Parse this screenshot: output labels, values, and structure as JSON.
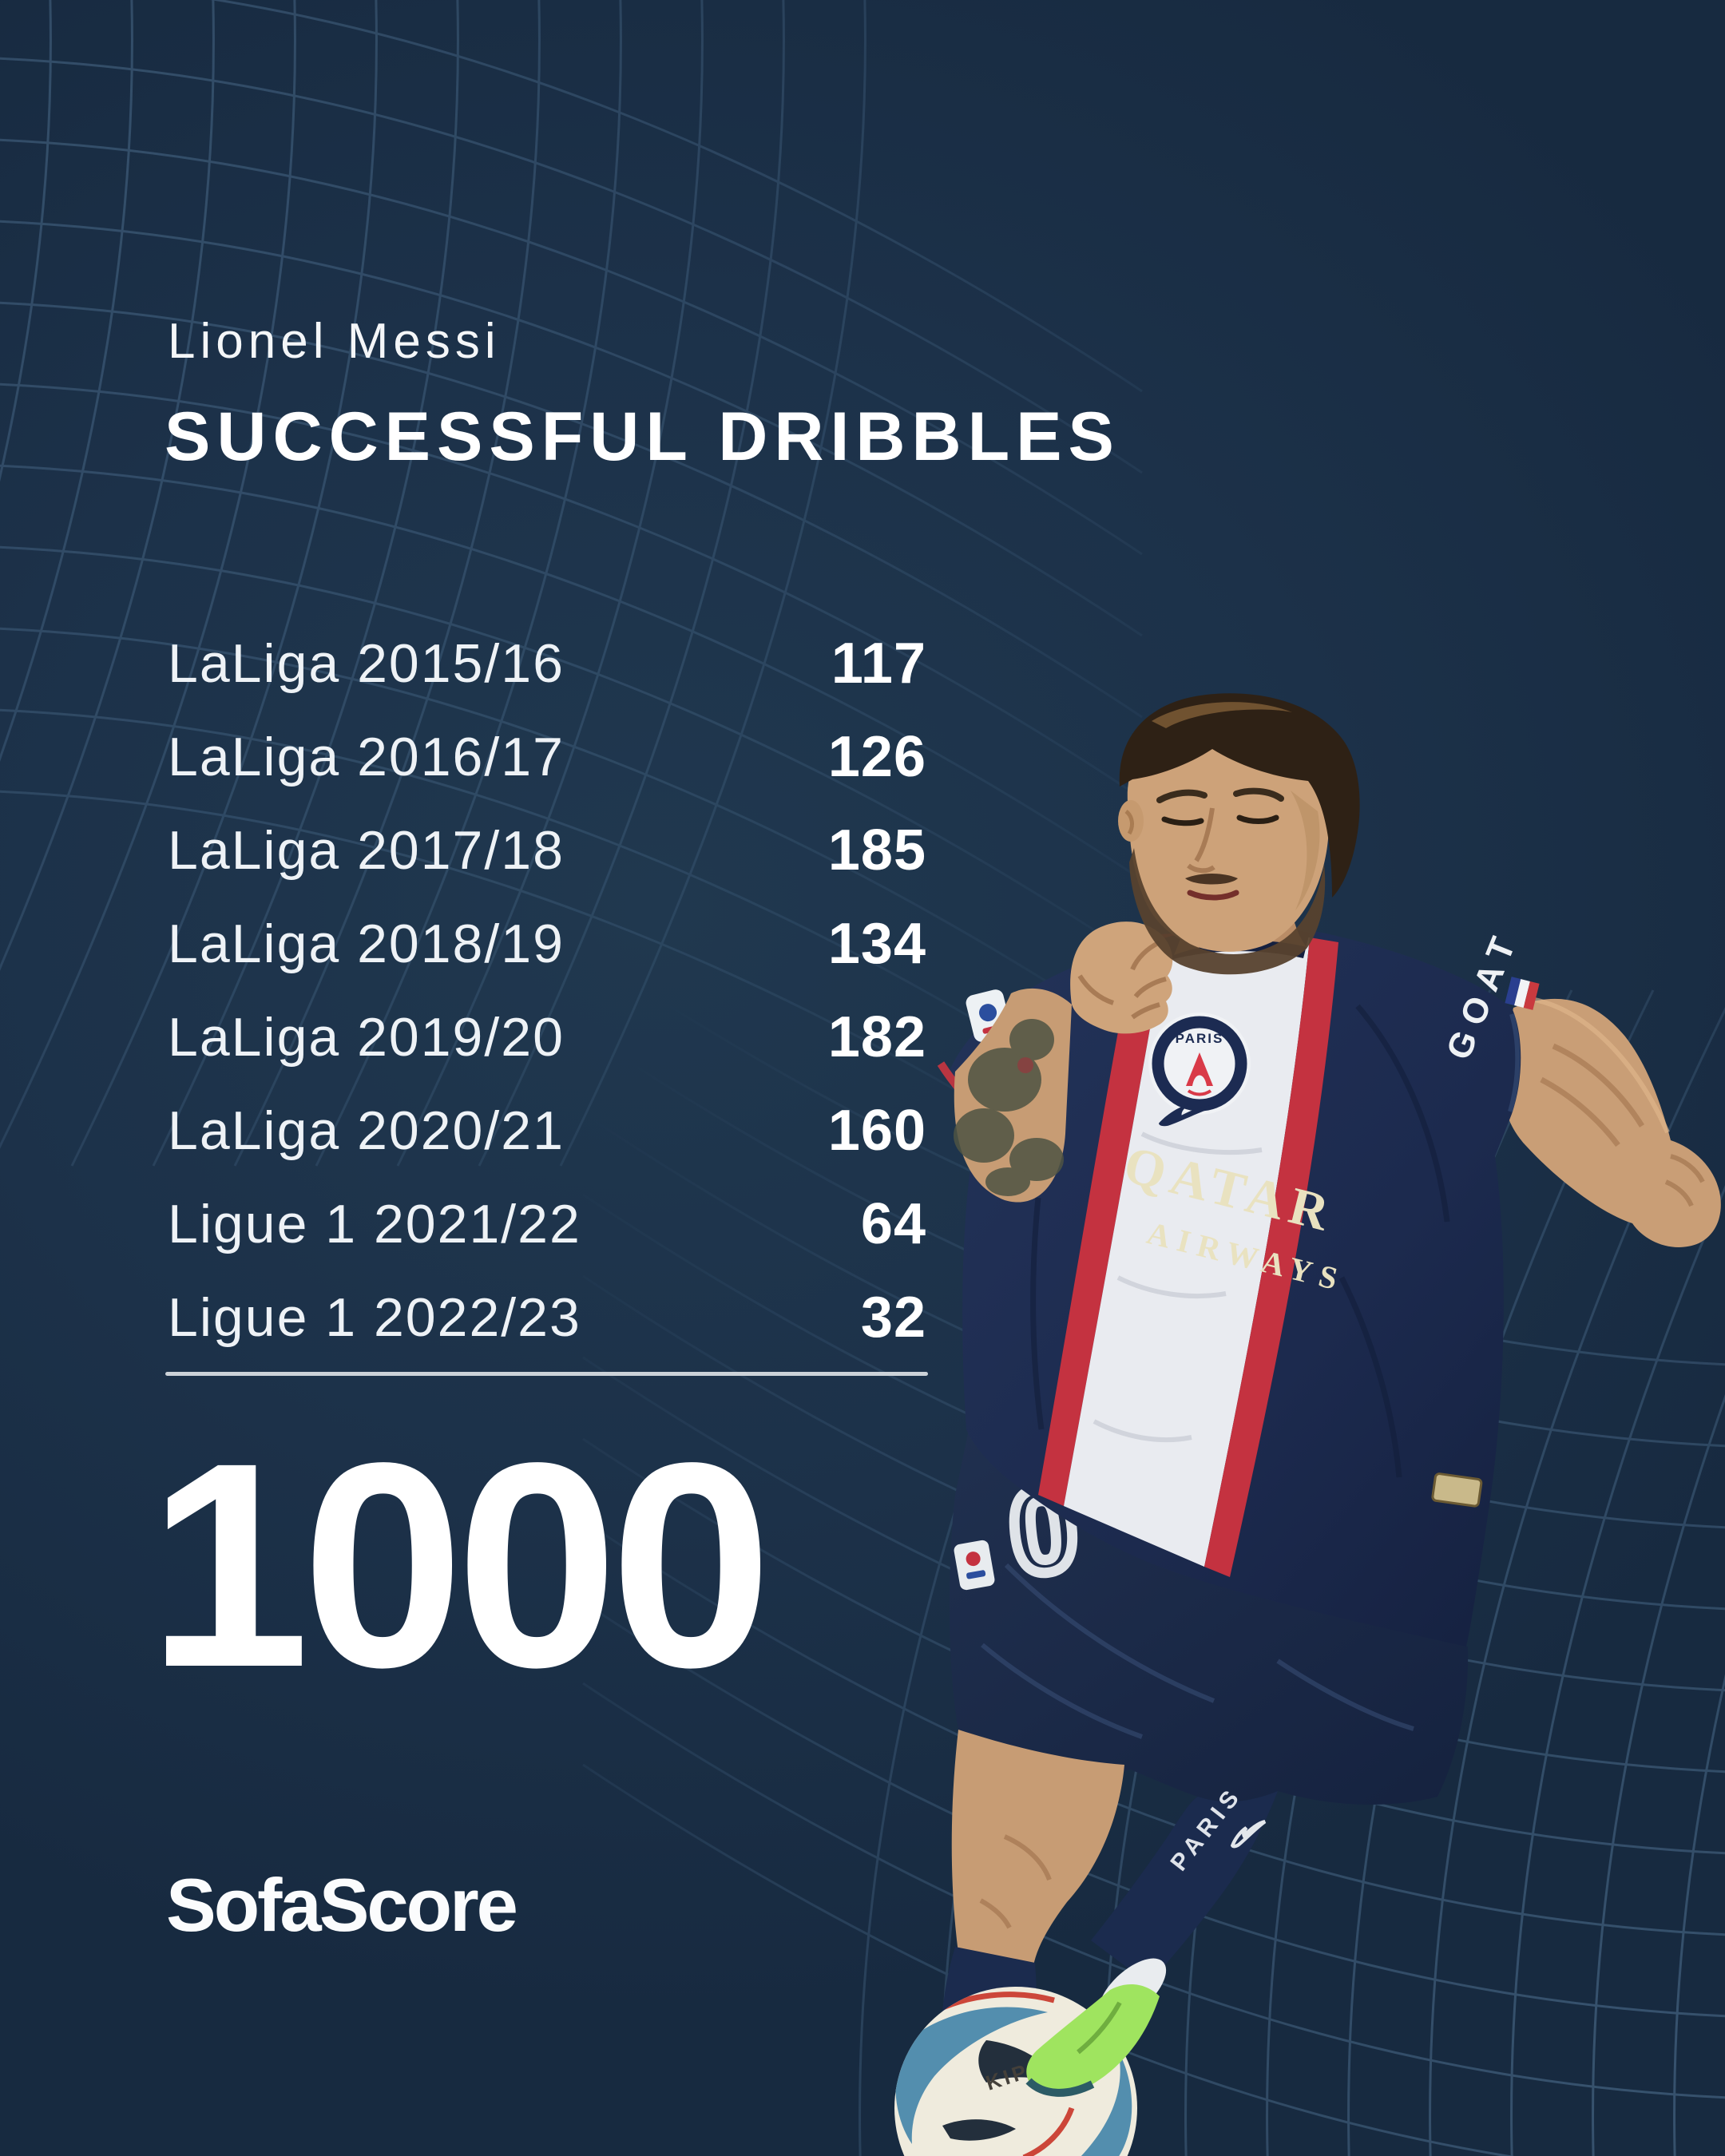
{
  "header": {
    "player": "Lionel Messi",
    "title": "SUCCESSFUL DRIBBLES"
  },
  "stats": {
    "rows": [
      {
        "label": "LaLiga 2015/16",
        "value": "117"
      },
      {
        "label": "LaLiga 2016/17",
        "value": "126"
      },
      {
        "label": "LaLiga 2017/18",
        "value": "185"
      },
      {
        "label": "LaLiga 2018/19",
        "value": "134"
      },
      {
        "label": "LaLiga 2019/20",
        "value": "182"
      },
      {
        "label": "LaLiga 2020/21",
        "value": "160"
      },
      {
        "label": "Ligue 1 2021/22",
        "value": "64"
      },
      {
        "label": "Ligue 1 2022/23",
        "value": "32"
      }
    ]
  },
  "total": {
    "value": "1000"
  },
  "brand": {
    "logo_text": "SofaScore"
  },
  "figure": {
    "crest_text": "PARIS",
    "sponsor_line1": "QATAR",
    "sponsor_line2": "AIRWAYS",
    "sleeve_text": "GOAT",
    "sock_text": "PARIS",
    "ball_brand": "KIPSTA",
    "shorts_number": "0"
  },
  "colors": {
    "background": "#1c3149",
    "grid_line": "#6890b4",
    "text": "#ffffff",
    "divider": "#ccd2d8",
    "jersey_navy": "#1e2c52",
    "stripe_red": "#c43240",
    "stripe_white": "#e9ebf0",
    "sponsor_cream": "#e9e2c0",
    "boot_green": "#9fe45f",
    "ball_teal": "#4a89ab",
    "skin": "#c99e76"
  },
  "chart_data": {
    "type": "table",
    "title": "Lionel Messi — Successful dribbles",
    "categories": [
      "LaLiga 2015/16",
      "LaLiga 2016/17",
      "LaLiga 2017/18",
      "LaLiga 2018/19",
      "LaLiga 2019/20",
      "LaLiga 2020/21",
      "Ligue 1 2021/22",
      "Ligue 1 2022/23"
    ],
    "values": [
      117,
      126,
      185,
      134,
      182,
      160,
      64,
      32
    ],
    "total": 1000,
    "source": "SofaScore"
  }
}
